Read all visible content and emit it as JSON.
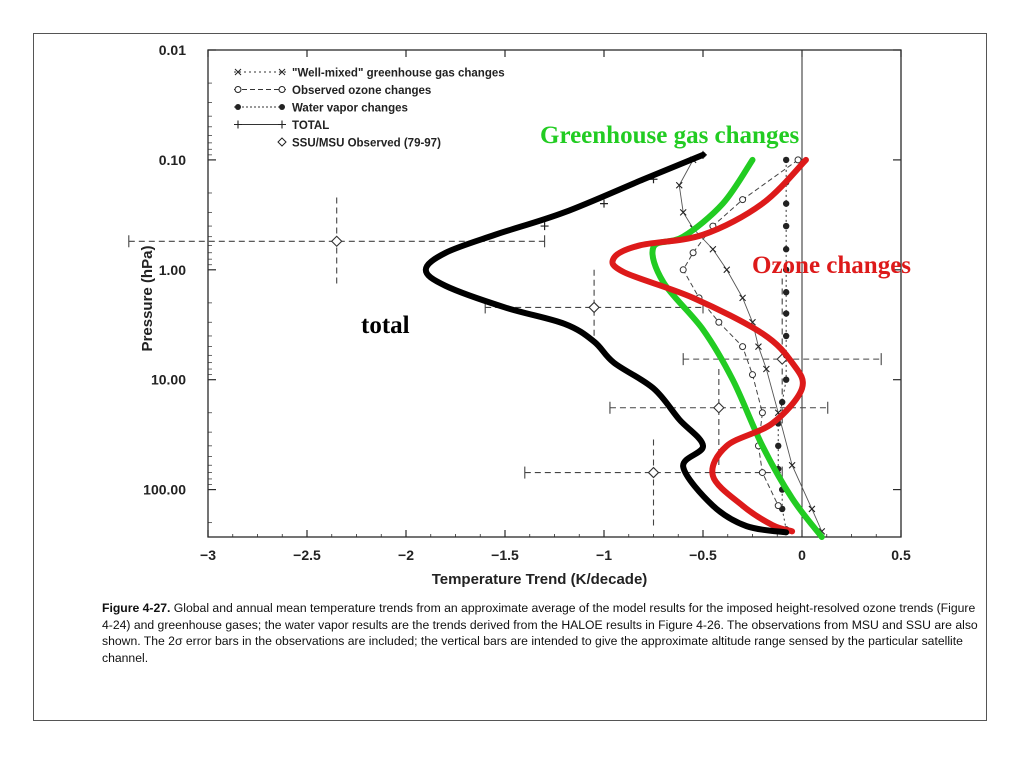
{
  "chart_data": {
    "type": "line",
    "xlabel": "Temperature Trend (K/decade)",
    "ylabel": "Pressure (hPa)",
    "xlim": [
      -3,
      0.5
    ],
    "ylim_pressure_log": [
      0.01,
      200
    ],
    "y_axis_reversed_log_scale": true,
    "x_ticks": [
      "−3",
      "−2.5",
      "−2",
      "−1.5",
      "−1",
      "−0.5",
      "0",
      "0.5"
    ],
    "x_tick_values": [
      -3,
      -2.5,
      -2,
      -1.5,
      -1,
      -0.5,
      0,
      0.5
    ],
    "y_ticks": [
      "0.01",
      "0.10",
      "1.00",
      "10.00",
      "100.00"
    ],
    "y_tick_values": [
      0.01,
      0.1,
      1,
      10,
      100
    ],
    "legend_placement": "top-left",
    "legend": [
      "\"Well-mixed\" greenhouse gas changes",
      "Observed ozone changes",
      "Water vapor changes",
      "TOTAL",
      "SSU/MSU Observed (79-97)"
    ],
    "series": [
      {
        "name": "total",
        "color": "#000000",
        "points": [
          [
            -0.5,
            0.09
          ],
          [
            -0.8,
            0.15
          ],
          [
            -1.2,
            0.3
          ],
          [
            -1.55,
            0.48
          ],
          [
            -1.8,
            0.7
          ],
          [
            -1.9,
            1.0
          ],
          [
            -1.8,
            1.4
          ],
          [
            -1.5,
            2.2
          ],
          [
            -1.2,
            3.1
          ],
          [
            -1.05,
            4.5
          ],
          [
            -0.95,
            7.0
          ],
          [
            -0.75,
            12
          ],
          [
            -0.62,
            23
          ],
          [
            -0.5,
            40
          ],
          [
            -0.6,
            62
          ],
          [
            -0.45,
            140
          ],
          [
            -0.28,
            215
          ],
          [
            -0.08,
            245
          ]
        ]
      },
      {
        "name": "Greenhouse gas changes",
        "color": "#22cc22",
        "points": [
          [
            -0.25,
            0.1
          ],
          [
            -0.4,
            0.25
          ],
          [
            -0.6,
            0.5
          ],
          [
            -0.75,
            0.62
          ],
          [
            -0.7,
            1.3
          ],
          [
            -0.5,
            3.5
          ],
          [
            -0.35,
            10
          ],
          [
            -0.2,
            40
          ],
          [
            -0.05,
            120
          ],
          [
            0.1,
            270
          ]
        ]
      },
      {
        "name": "Ozone changes",
        "color": "#dd1a1a",
        "points": [
          [
            0.02,
            0.1
          ],
          [
            -0.2,
            0.25
          ],
          [
            -0.5,
            0.48
          ],
          [
            -0.82,
            0.6
          ],
          [
            -0.95,
            0.78
          ],
          [
            -0.9,
            1.05
          ],
          [
            -0.55,
            1.8
          ],
          [
            -0.2,
            3.8
          ],
          [
            -0.05,
            7
          ],
          [
            0,
            12
          ],
          [
            -0.15,
            25
          ],
          [
            -0.38,
            40
          ],
          [
            -0.45,
            75
          ],
          [
            -0.3,
            140
          ],
          [
            -0.15,
            210
          ],
          [
            -0.05,
            240
          ]
        ]
      }
    ],
    "markers": {
      "greenhouse_x": [
        [
          -0.55,
          0.1
        ],
        [
          -0.62,
          0.17
        ],
        [
          -0.6,
          0.3
        ],
        [
          -0.55,
          0.42
        ],
        [
          -0.45,
          0.65
        ],
        [
          -0.38,
          1.0
        ],
        [
          -0.3,
          1.8
        ],
        [
          -0.25,
          3.0
        ],
        [
          -0.22,
          5.0
        ],
        [
          -0.18,
          8.0
        ],
        [
          -0.12,
          20
        ],
        [
          -0.05,
          60
        ],
        [
          0.05,
          150
        ],
        [
          0.1,
          240
        ]
      ],
      "ozone_o": [
        [
          -0.02,
          0.1
        ],
        [
          -0.3,
          0.23
        ],
        [
          -0.45,
          0.4
        ],
        [
          -0.55,
          0.7
        ],
        [
          -0.6,
          1.0
        ],
        [
          -0.52,
          1.8
        ],
        [
          -0.42,
          3.0
        ],
        [
          -0.3,
          5.0
        ],
        [
          -0.25,
          9.0
        ],
        [
          -0.2,
          20
        ],
        [
          -0.22,
          40
        ],
        [
          -0.2,
          70
        ],
        [
          -0.12,
          140
        ]
      ],
      "water_dot": [
        [
          -0.08,
          0.1
        ],
        [
          -0.08,
          0.16
        ],
        [
          -0.08,
          0.25
        ],
        [
          -0.08,
          0.4
        ],
        [
          -0.08,
          0.65
        ],
        [
          -0.08,
          1.0
        ],
        [
          -0.08,
          1.6
        ],
        [
          -0.08,
          2.5
        ],
        [
          -0.08,
          4.0
        ],
        [
          -0.08,
          6.0
        ],
        [
          -0.08,
          10
        ],
        [
          -0.1,
          16
        ],
        [
          -0.12,
          25
        ],
        [
          -0.12,
          40
        ],
        [
          -0.12,
          65
        ],
        [
          -0.1,
          100
        ],
        [
          -0.1,
          150
        ],
        [
          -0.08,
          230
        ]
      ],
      "total_plus": [
        [
          -0.5,
          0.09
        ],
        [
          -0.75,
          0.15
        ],
        [
          -1.0,
          0.25
        ],
        [
          -1.3,
          0.4
        ]
      ],
      "ssu_msu": [
        {
          "x": -2.35,
          "y": 0.55,
          "xerr": 1.05,
          "yrange": [
            0.22,
            1.4
          ]
        },
        {
          "x": -1.05,
          "y": 2.2,
          "xerr": 0.55,
          "yrange": [
            1.0,
            4.5
          ]
        },
        {
          "x": -0.42,
          "y": 18,
          "xerr": 0.55,
          "yrange": [
            8,
            60
          ]
        },
        {
          "x": -0.75,
          "y": 70,
          "xerr": 0.65,
          "yrange": [
            35,
            230
          ]
        },
        {
          "x": -0.1,
          "y": 6.5,
          "xerr": 0.5,
          "yrange": [
            1.2,
            25
          ]
        }
      ]
    }
  },
  "overlay_labels": {
    "greenhouse": "Greenhouse gas changes",
    "ozone": "Ozone changes",
    "total": "total"
  },
  "caption": {
    "label": "Figure 4-27.",
    "text": "Global and annual mean temperature trends from an approximate average of the model results for the imposed height-resolved ozone trends (Figure 4-24) and greenhouse gases; the water vapor results are the trends derived from the HALOE results in Figure 4-26. The observations from MSU and SSU are also shown. The 2σ error bars in the observations are included; the vertical bars are intended to give the approximate altitude range sensed by the particular satellite channel."
  }
}
